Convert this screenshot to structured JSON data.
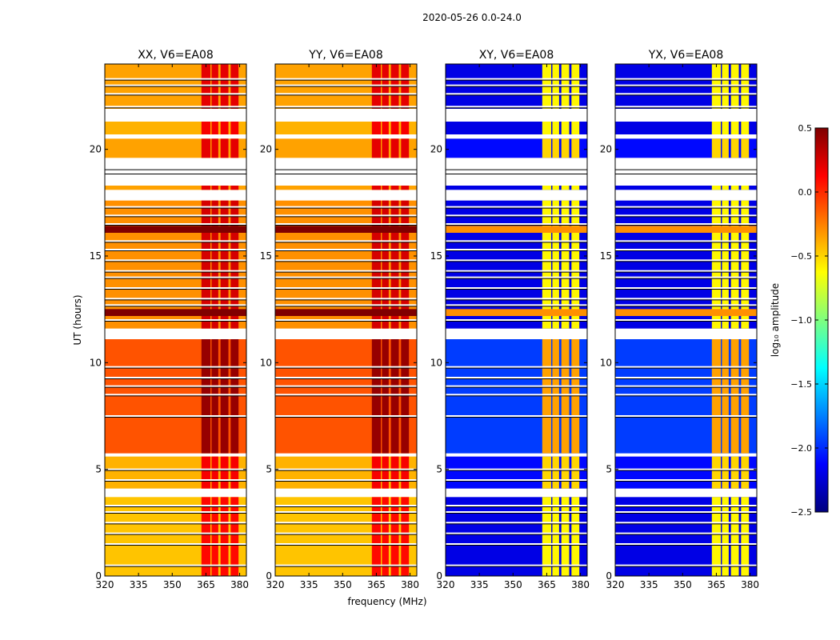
{
  "suptitle": "2020-05-26 0.0-24.0",
  "chart_data": {
    "type": "heatmap",
    "xlabel": "frequency (MHz)",
    "ylabel": "UT (hours)",
    "xlim": [
      320,
      383
    ],
    "ylim": [
      0,
      24
    ],
    "xticks": [
      320,
      335,
      350,
      365,
      380
    ],
    "yticks": [
      0,
      5,
      10,
      15,
      20
    ],
    "panels": [
      {
        "title": "XX, V6=EA08",
        "mode": "parallel",
        "ylabels": true
      },
      {
        "title": "YY, V6=EA08",
        "mode": "parallel",
        "ylabels": true
      },
      {
        "title": "XY, V6=EA08",
        "mode": "cross",
        "ylabels": true
      },
      {
        "title": "YX, V6=EA08",
        "mode": "cross",
        "ylabels": true
      }
    ],
    "strong_channels_mhz": [
      [
        363,
        367
      ],
      [
        367.5,
        370.5
      ],
      [
        371.5,
        375
      ],
      [
        376,
        379.5
      ]
    ],
    "time_segments": [
      {
        "t0": 0.0,
        "t1": 3.7,
        "parallel": -0.45,
        "cross": -2.2
      },
      {
        "t0": 4.1,
        "t1": 5.6,
        "parallel": -0.4,
        "cross": -2.1
      },
      {
        "t0": 5.75,
        "t1": 11.1,
        "parallel": -0.12,
        "cross": -1.95
      },
      {
        "t0": 11.6,
        "t1": 17.6,
        "parallel": -0.3,
        "cross": -2.2
      },
      {
        "t0": 18.1,
        "t1": 18.3,
        "parallel": -0.35,
        "cross": -2.2
      },
      {
        "t0": 19.6,
        "t1": 20.5,
        "parallel": -0.35,
        "cross": -2.1
      },
      {
        "t0": 20.7,
        "t1": 21.3,
        "parallel": -0.4,
        "cross": -2.2
      },
      {
        "t0": 21.9,
        "t1": 24.0,
        "parallel": -0.35,
        "cross": -2.2
      }
    ],
    "bright_rows_hours": [
      12.3,
      12.4,
      16.2,
      16.3
    ],
    "flagged_rows_hours": [
      0.5,
      1.5,
      2.0,
      2.5,
      3.0,
      3.3,
      4.5,
      5.0,
      7.5,
      8.5,
      8.9,
      9.3,
      9.8,
      12.0,
      12.7,
      13.0,
      13.5,
      14.0,
      14.3,
      14.8,
      15.3,
      15.7,
      16.5,
      16.9,
      17.3,
      18.9,
      19.1,
      22.0,
      22.6,
      23.0,
      23.3
    ],
    "colorbar": {
      "label": "log₁₀ amplitude",
      "ticks": [
        "0.5",
        "0.0",
        "−0.5",
        "−1.0",
        "−1.5",
        "−2.0",
        "−2.5"
      ],
      "range": [
        -2.5,
        0.5
      ],
      "colormap": "jet"
    }
  }
}
